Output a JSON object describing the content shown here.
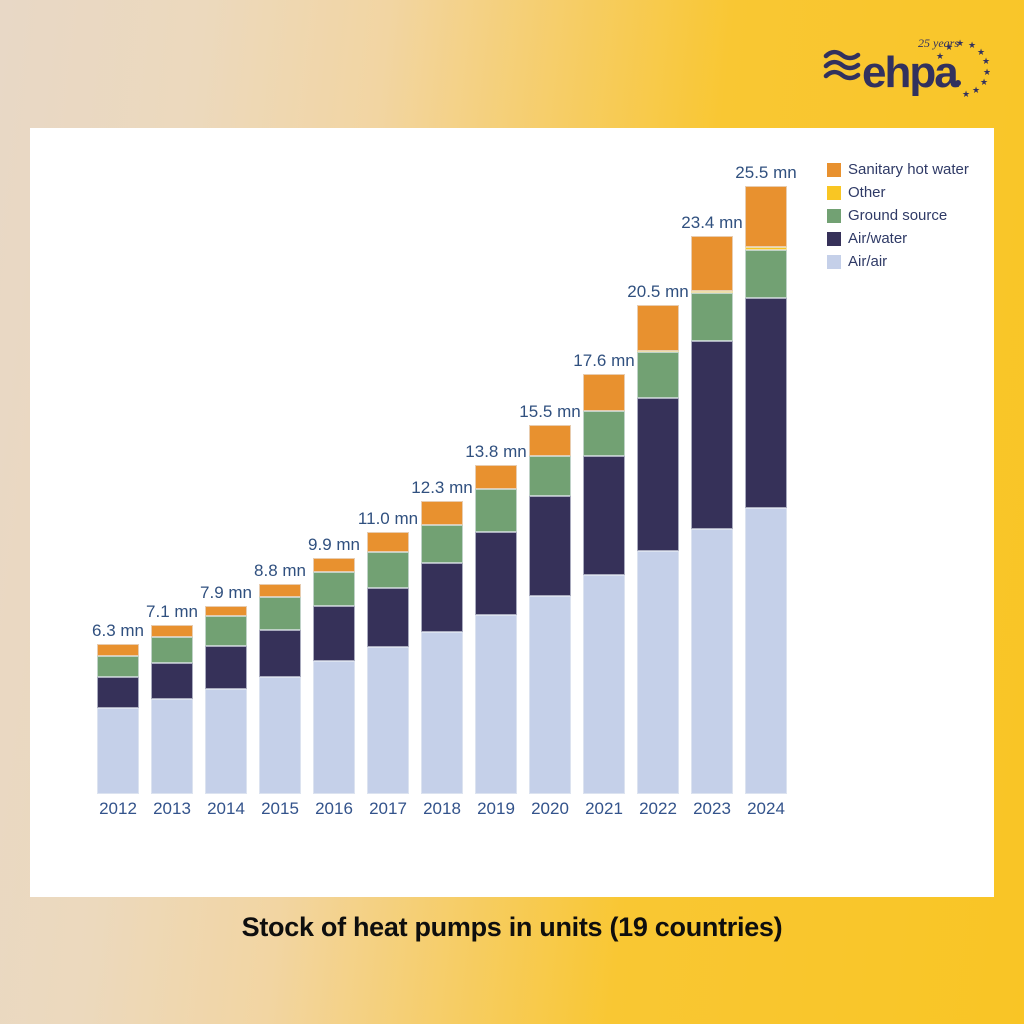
{
  "logo": {
    "wordmark": "ehpa",
    "anniversary": "25 years"
  },
  "title": "Stock of heat pumps in units (19 countries)",
  "colors": {
    "sanitary_hot_water": "#E8912F",
    "other": "#F9C623",
    "ground_source": "#72A173",
    "air_water": "#363159",
    "air_air": "#C5D0E9",
    "label_blue": "#30507F",
    "background_gold": "#F9C525",
    "background_beige": "#E8D8C6",
    "panel_white": "#FFFFFF",
    "logo_navy": "#32315E"
  },
  "chart_data": {
    "type": "bar",
    "stacked": true,
    "title": "Stock of heat pumps in units (19 countries)",
    "unit_suffix": "mn",
    "grid": false,
    "legend_position": "top-right",
    "categories": [
      "2012",
      "2013",
      "2014",
      "2015",
      "2016",
      "2017",
      "2018",
      "2019",
      "2020",
      "2021",
      "2022",
      "2023",
      "2024"
    ],
    "totals": [
      6.3,
      7.1,
      7.9,
      8.8,
      9.9,
      11.0,
      12.3,
      13.8,
      15.5,
      17.6,
      20.5,
      23.4,
      25.5
    ],
    "series": [
      {
        "name": "Air/air",
        "color": "#C5D0E9",
        "values": [
          3.6,
          4.0,
          4.4,
          4.9,
          5.6,
          6.15,
          6.8,
          7.5,
          8.3,
          9.2,
          10.2,
          11.1,
          12.0
        ]
      },
      {
        "name": "Air/water",
        "color": "#363159",
        "values": [
          1.3,
          1.5,
          1.8,
          2.0,
          2.3,
          2.5,
          2.9,
          3.5,
          4.2,
          5.0,
          6.4,
          7.9,
          8.8
        ]
      },
      {
        "name": "Ground source",
        "color": "#72A173",
        "values": [
          0.9,
          1.1,
          1.25,
          1.35,
          1.4,
          1.5,
          1.6,
          1.8,
          1.7,
          1.85,
          1.95,
          2.0,
          2.0
        ]
      },
      {
        "name": "Other",
        "color": "#F9C623",
        "values": [
          0,
          0,
          0,
          0,
          0,
          0,
          0,
          0,
          0,
          0,
          0.05,
          0.1,
          0.15
        ]
      },
      {
        "name": "Sanitary hot water",
        "color": "#E8912F",
        "values": [
          0.5,
          0.5,
          0.45,
          0.55,
          0.6,
          0.85,
          1.0,
          1.0,
          1.3,
          1.55,
          1.9,
          2.3,
          2.55
        ]
      }
    ],
    "legend": [
      {
        "label": "Sanitary hot water",
        "color": "#E8912F"
      },
      {
        "label": "Other",
        "color": "#F9C623"
      },
      {
        "label": "Ground source",
        "color": "#72A173"
      },
      {
        "label": "Air/water",
        "color": "#363159"
      },
      {
        "label": "Air/air",
        "color": "#C5D0E9"
      }
    ]
  }
}
